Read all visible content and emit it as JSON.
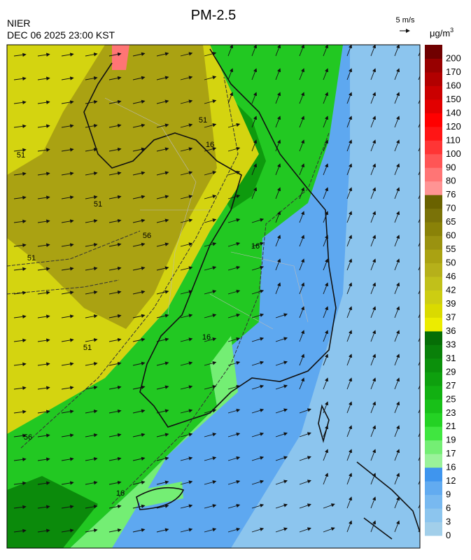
{
  "header": {
    "title": "PM-2.5",
    "agency": "NIER",
    "datetime": "DEC 06 2025 23:00 KST",
    "wind_scale": "5 m/s",
    "unit": "μg/m",
    "unit_sup": "3"
  },
  "legend": {
    "ticks": [
      0,
      3,
      6,
      9,
      12,
      16,
      17,
      19,
      21,
      23,
      25,
      27,
      29,
      31,
      33,
      36,
      37,
      39,
      42,
      46,
      50,
      55,
      60,
      65,
      70,
      76,
      80,
      90,
      100,
      110,
      120,
      140,
      150,
      160,
      170,
      200
    ],
    "colors": [
      "#a2cfea",
      "#8cc5ee",
      "#78b9f0",
      "#62abf0",
      "#3f95ee",
      "#9af29a",
      "#74ee74",
      "#40e640",
      "#24d224",
      "#18c018",
      "#12b012",
      "#0ea00e",
      "#0b900b",
      "#098009",
      "#066e06",
      "#ecec00",
      "#dada00",
      "#cdcd12",
      "#c1c01a",
      "#b6b01a",
      "#aaa212",
      "#9a9210",
      "#8a8208",
      "#7a7208",
      "#6a6200",
      "#ff9494",
      "#ff7575",
      "#ff5555",
      "#ff3535",
      "#ff1515",
      "#ff0000",
      "#e20000",
      "#ca0000",
      "#b20000",
      "#980000",
      "#700000"
    ]
  },
  "contour_labels": [
    "51",
    "51",
    "51",
    "51",
    "56",
    "56",
    "16",
    "16",
    "16",
    "16",
    "51"
  ]
}
